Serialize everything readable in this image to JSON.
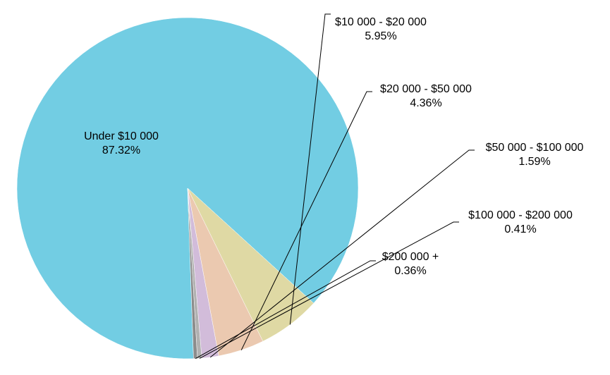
{
  "chart_data": {
    "type": "pie",
    "title": "",
    "series": [
      {
        "values": [
          87.32,
          5.95,
          4.36,
          1.59,
          0.41,
          0.36
        ],
        "labels": [
          "Under $10 000",
          "$10 000 - $20 000",
          "$20 000 - $50 000",
          "$50 000 - $100 000",
          "$100 000 - $200 000",
          "$200 000 +"
        ],
        "data_labels": [
          "87.32%",
          "5.95%",
          "4.36%",
          "1.59%",
          "0.41%",
          "0.36%"
        ]
      }
    ],
    "colors": [
      "#72cde3",
      "#dfd9a4",
      "#ebc9b0",
      "#d2bcda",
      "#b1b1b1",
      "#8c8c8c"
    ],
    "legend": "none"
  }
}
